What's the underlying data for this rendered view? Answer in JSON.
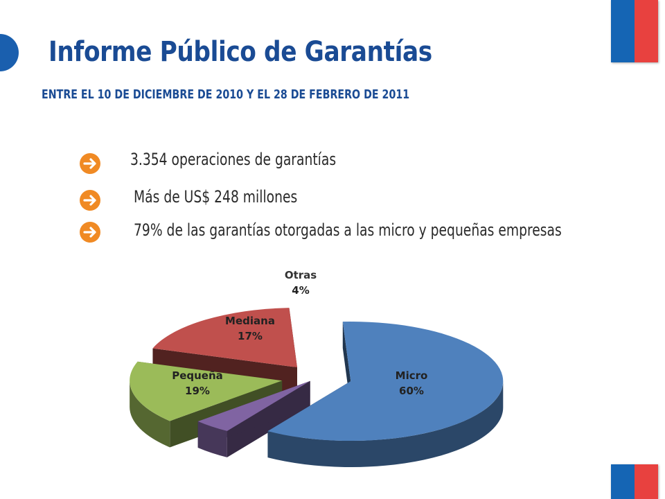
{
  "title": "Informe Público de Garantías",
  "subtitle": "ENTRE EL 10 DE DICIEMBRE DE 2010 Y EL 28 DE FEBRERO DE 2011",
  "bullets": [
    "3.354 operaciones de garantías",
    "Más de US$ 248 millones",
    "79% de las garantías otorgadas a las micro y pequeñas empresas"
  ],
  "icons": {
    "flag": "chile-flag-icon",
    "play": "play-circle-icon",
    "bullet": "arrow-right-circle-icon"
  },
  "colors": {
    "title": "#1a4b94",
    "flag_blue": "#1565b4",
    "flag_red": "#e8413f",
    "bullet_arrow": "#f08a24"
  },
  "chart_data": {
    "type": "pie",
    "style": "3d-exploded",
    "slices": [
      {
        "label": "Micro",
        "value": 60,
        "color": "#4f81bd"
      },
      {
        "label": "Otras",
        "value": 4,
        "color": "#8064a2"
      },
      {
        "label": "Mediana",
        "value": 17,
        "color": "#9bbb59"
      },
      {
        "label": "Pequeña",
        "value": 19,
        "color": "#c0504d"
      }
    ],
    "unit": "%"
  }
}
